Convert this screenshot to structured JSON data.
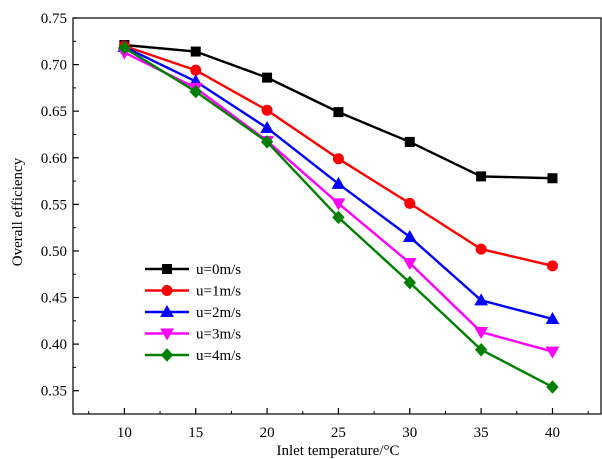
{
  "chart_data": {
    "type": "line",
    "title": "",
    "xlabel": "Inlet temperature/°C",
    "ylabel": "Overall efficiency",
    "x": [
      10,
      15,
      20,
      25,
      30,
      35,
      40
    ],
    "xlim": [
      6.4,
      43.4
    ],
    "ylim": [
      0.325,
      0.75
    ],
    "xticks": [
      "10",
      "15",
      "20",
      "25",
      "30",
      "35",
      "40"
    ],
    "yticks": [
      "0.35",
      "0.40",
      "0.45",
      "0.50",
      "0.55",
      "0.60",
      "0.65",
      "0.70",
      "0.75"
    ],
    "grid": false,
    "legend_position": "lower-left",
    "series": [
      {
        "name": "u=0m/s",
        "color": "#000000",
        "marker": "square",
        "values": [
          0.721,
          0.714,
          0.686,
          0.649,
          0.617,
          0.58,
          0.578
        ]
      },
      {
        "name": "u=1m/s",
        "color": "#ff0000",
        "marker": "circle",
        "values": [
          0.72,
          0.694,
          0.651,
          0.599,
          0.551,
          0.502,
          0.484
        ]
      },
      {
        "name": "u=2m/s",
        "color": "#0000ff",
        "marker": "triangle-up",
        "values": [
          0.719,
          0.682,
          0.632,
          0.572,
          0.515,
          0.447,
          0.427
        ]
      },
      {
        "name": "u=3m/s",
        "color": "#ff00ff",
        "marker": "triangle-down",
        "values": [
          0.713,
          0.675,
          0.618,
          0.551,
          0.487,
          0.413,
          0.392
        ]
      },
      {
        "name": "u=4m/s",
        "color": "#008000",
        "marker": "diamond",
        "values": [
          0.718,
          0.671,
          0.617,
          0.536,
          0.466,
          0.394,
          0.354
        ]
      }
    ]
  }
}
